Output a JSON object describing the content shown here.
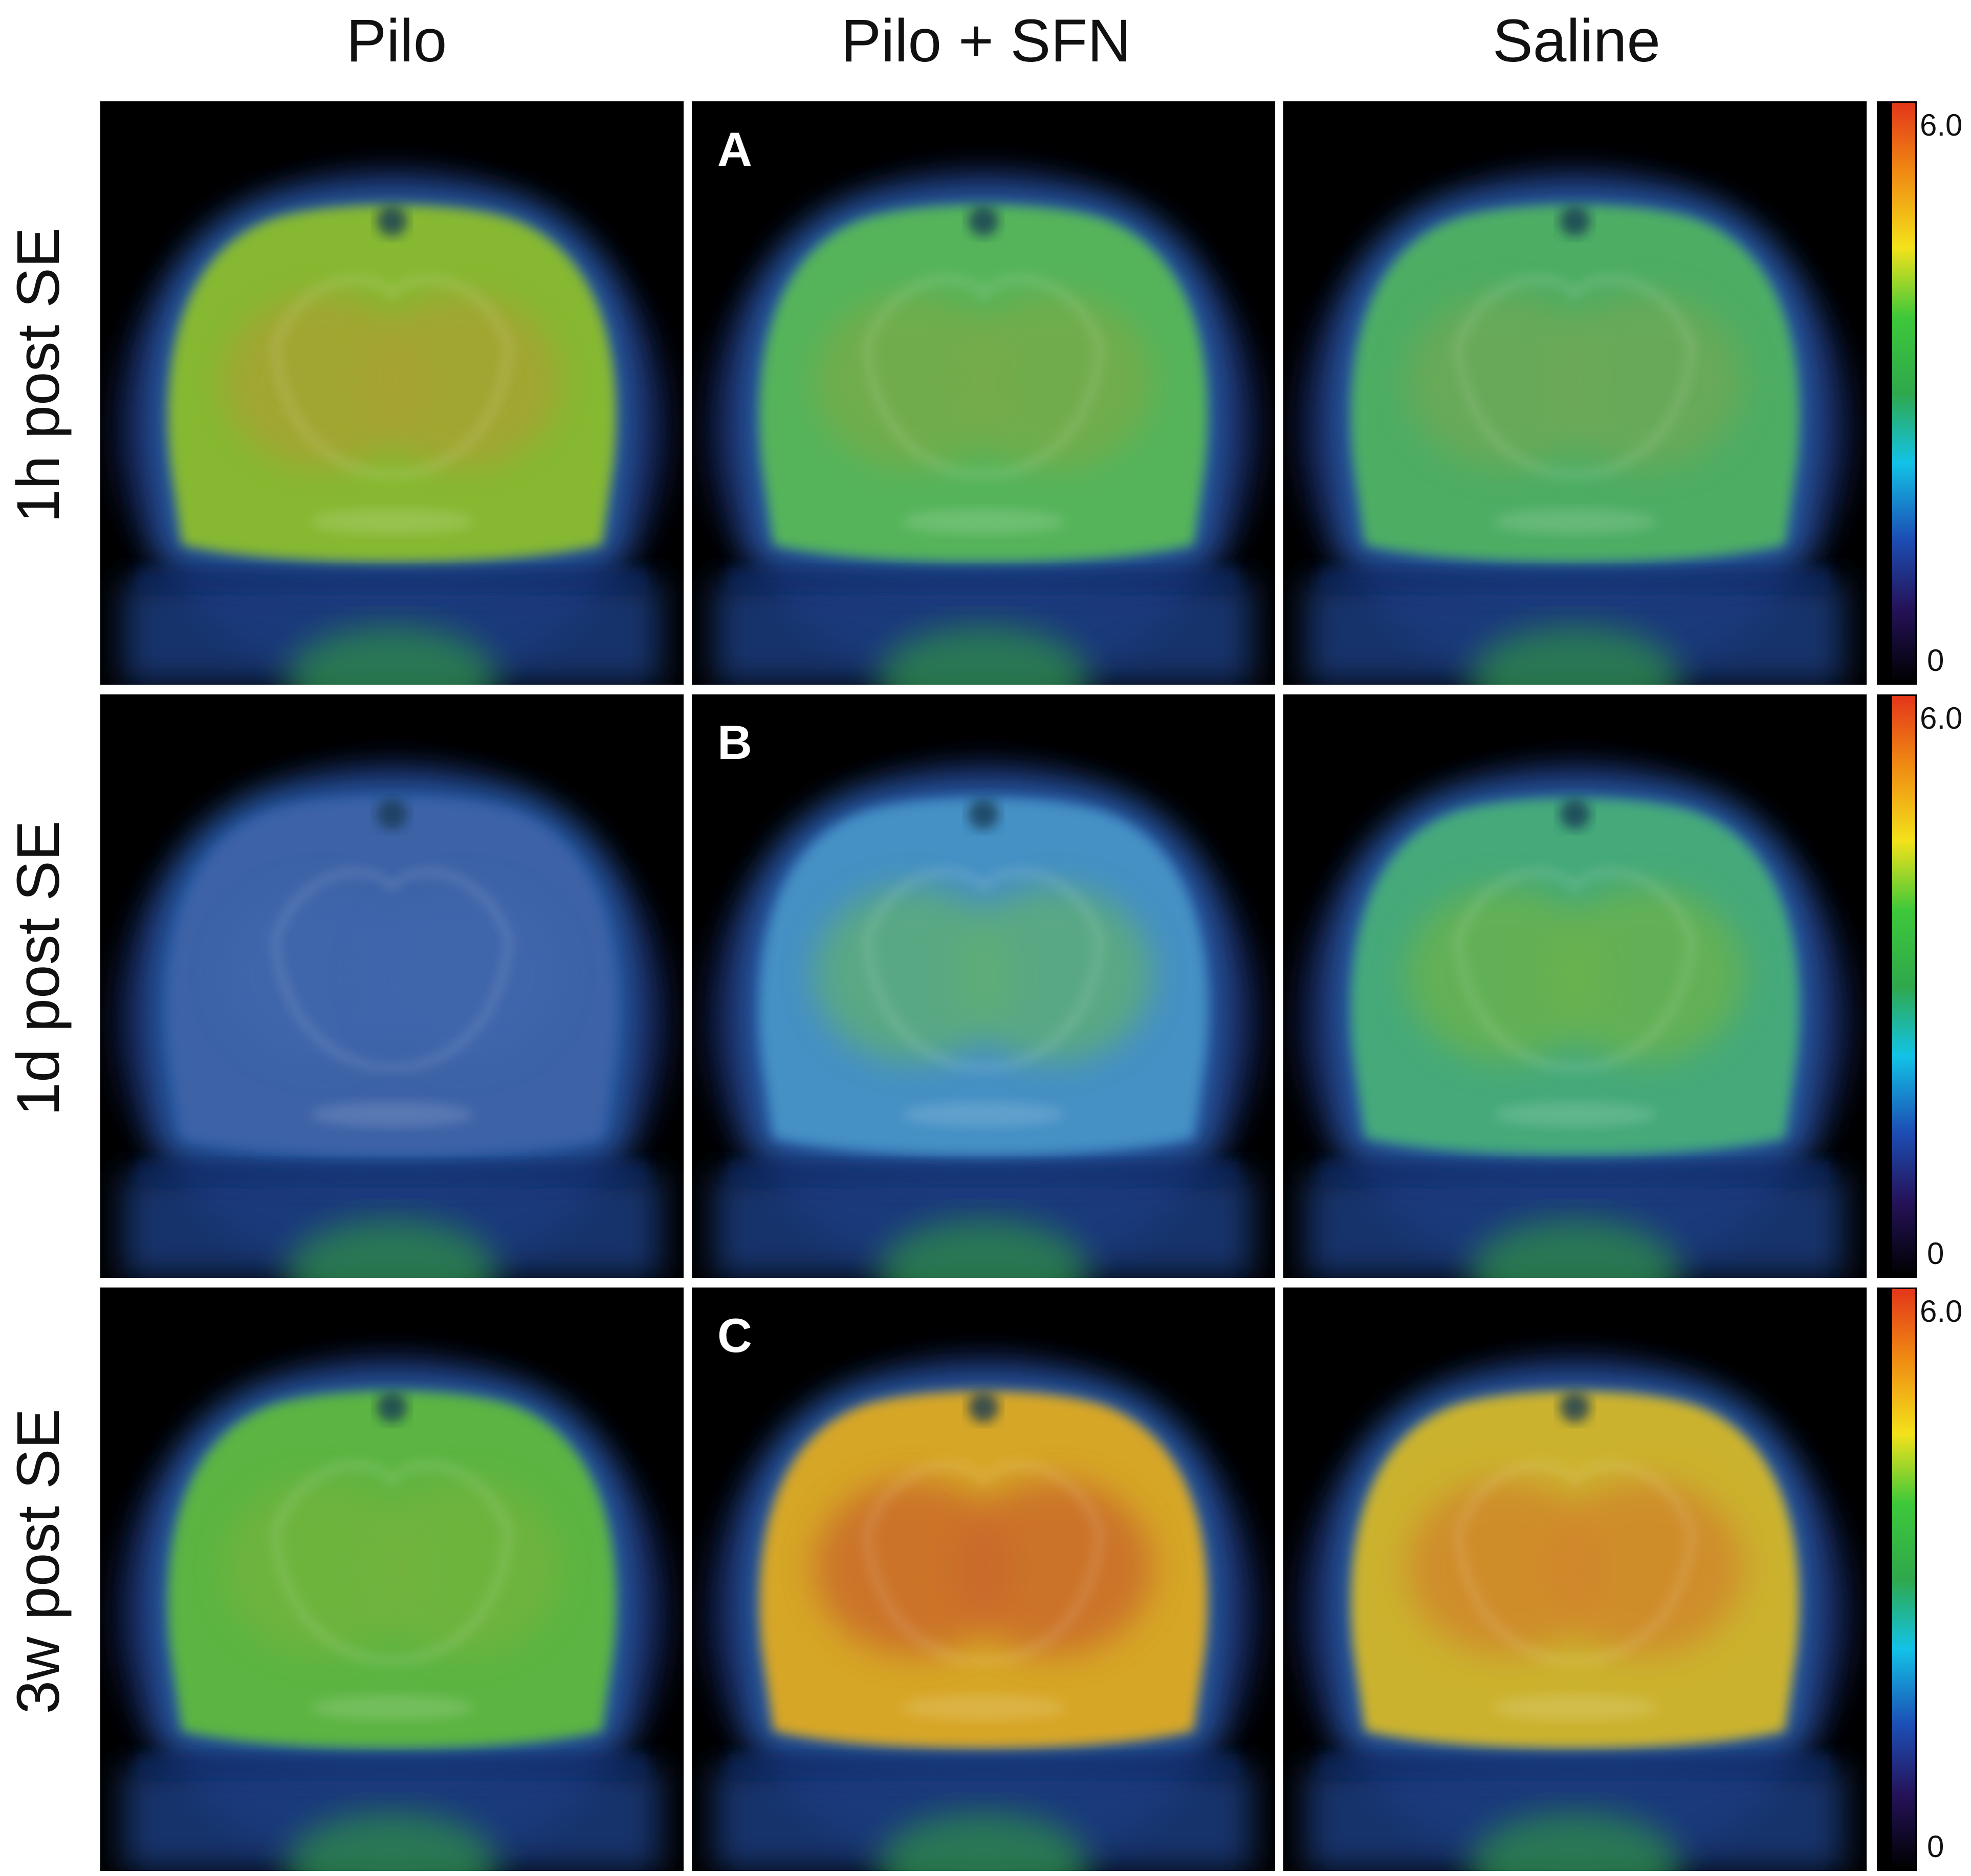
{
  "columns": [
    "Pilo",
    "Pilo + SFN",
    "Saline"
  ],
  "rows": [
    {
      "label": "1h post SE",
      "letter": "A",
      "cb_max": "6.0",
      "cb_min": "0"
    },
    {
      "label": "1d post SE",
      "letter": "B",
      "cb_max": "6.0",
      "cb_min": "0"
    },
    {
      "label": "3w post SE",
      "letter": "C",
      "cb_max": "6.0",
      "cb_min": "0"
    }
  ],
  "colors": {
    "colorscale": [
      "#000000",
      "#25135a",
      "#1c4fb5",
      "#12c3e6",
      "#2fa84c",
      "#3dc83a",
      "#f3e21a",
      "#f08a12",
      "#e3361a"
    ],
    "panel_tints": [
      [
        "#86b832",
        "#55b45a",
        "#4ead64"
      ],
      [
        "#3d62a6",
        "#4590c4",
        "#45a97a"
      ],
      [
        "#5cb442",
        "#d6a626",
        "#cbb22e"
      ]
    ],
    "panel_cores": [
      [
        "#a8a230",
        "#77ab4a",
        "#6ea956"
      ],
      [
        "#3f66ac",
        "#5fae74",
        "#6ab24e"
      ],
      [
        "#72b43e",
        "#c9682a",
        "#d0852a"
      ]
    ]
  }
}
